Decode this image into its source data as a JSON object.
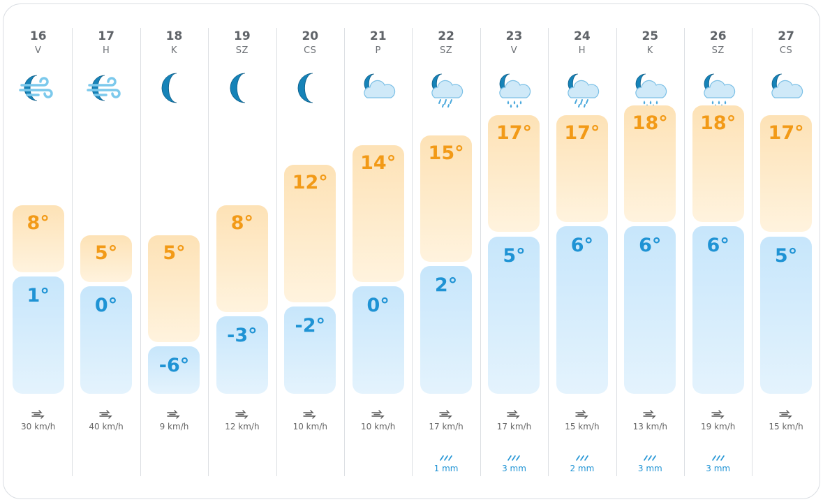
{
  "forecast": {
    "days": [
      {
        "day": "16",
        "dow": "V",
        "icon": "wind-moon-icon",
        "high": "8°",
        "low": "1°",
        "high_temp": 8,
        "low_temp": 1,
        "wind": "30 km/h",
        "rain": ""
      },
      {
        "day": "17",
        "dow": "H",
        "icon": "wind-moon-icon",
        "high": "5°",
        "low": "0°",
        "high_temp": 5,
        "low_temp": 0,
        "wind": "40 km/h",
        "rain": ""
      },
      {
        "day": "18",
        "dow": "K",
        "icon": "moon-icon",
        "high": "5°",
        "low": "-6°",
        "high_temp": 5,
        "low_temp": -6,
        "wind": "9 km/h",
        "rain": ""
      },
      {
        "day": "19",
        "dow": "SZ",
        "icon": "moon-icon",
        "high": "8°",
        "low": "-3°",
        "high_temp": 8,
        "low_temp": -3,
        "wind": "12 km/h",
        "rain": ""
      },
      {
        "day": "20",
        "dow": "CS",
        "icon": "moon-icon",
        "high": "12°",
        "low": "-2°",
        "high_temp": 12,
        "low_temp": -2,
        "wind": "10 km/h",
        "rain": ""
      },
      {
        "day": "21",
        "dow": "P",
        "icon": "cloudy-moon-icon",
        "high": "14°",
        "low": "0°",
        "high_temp": 14,
        "low_temp": 0,
        "wind": "10 km/h",
        "rain": ""
      },
      {
        "day": "22",
        "dow": "SZ",
        "icon": "drizzle-moon-icon",
        "high": "15°",
        "low": "2°",
        "high_temp": 15,
        "low_temp": 2,
        "wind": "17 km/h",
        "rain": "1 mm"
      },
      {
        "day": "23",
        "dow": "V",
        "icon": "rain-moon-icon",
        "high": "17°",
        "low": "5°",
        "high_temp": 17,
        "low_temp": 5,
        "wind": "17 km/h",
        "rain": "3 mm"
      },
      {
        "day": "24",
        "dow": "H",
        "icon": "drizzle-moon-icon",
        "high": "17°",
        "low": "6°",
        "high_temp": 17,
        "low_temp": 6,
        "wind": "15 km/h",
        "rain": "2 mm"
      },
      {
        "day": "25",
        "dow": "K",
        "icon": "rain-moon-icon",
        "high": "18°",
        "low": "6°",
        "high_temp": 18,
        "low_temp": 6,
        "wind": "13 km/h",
        "rain": "3 mm"
      },
      {
        "day": "26",
        "dow": "SZ",
        "icon": "rain-moon-icon",
        "high": "18°",
        "low": "6°",
        "high_temp": 18,
        "low_temp": 6,
        "wind": "19 km/h",
        "rain": "3 mm"
      },
      {
        "day": "27",
        "dow": "CS",
        "icon": "cloudy-moon-icon",
        "high": "17°",
        "low": "5°",
        "high_temp": 17,
        "low_temp": 5,
        "wind": "15 km/h",
        "rain": ""
      }
    ]
  },
  "colors": {
    "high_text": "#f29a17",
    "low_text": "#1f93d4",
    "high_bar": "#fde2b6",
    "low_bar": "#c7e6fb",
    "rain_text": "#1f93d4"
  }
}
